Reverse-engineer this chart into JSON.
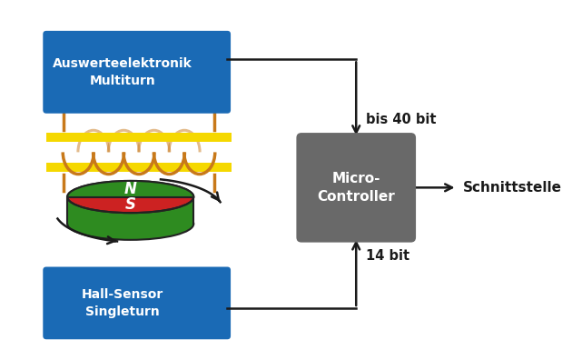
{
  "bg_color": "#ffffff",
  "blue_box_color": "#1a6ab5",
  "gray_box_color": "#696969",
  "coil_color": "#c8791a",
  "yellow_bar_color": "#f5d800",
  "magnet_red_color": "#cc2222",
  "magnet_green_color": "#2e8b20",
  "magnet_outline_color": "#222222",
  "arrow_color": "#1a1a1a",
  "text_white": "#ffffff",
  "text_dark": "#1a1a1a",
  "box1_label": "Auswerteelektronik\nMultiturn",
  "box2_label": "Micro-\nController",
  "box3_label": "Hall-Sensor\nSingleturn",
  "label_top": "bis 40 bit",
  "label_bottom": "14 bit",
  "label_right": "Schnittstelle",
  "figsize": [
    6.3,
    3.96
  ],
  "dpi": 100
}
